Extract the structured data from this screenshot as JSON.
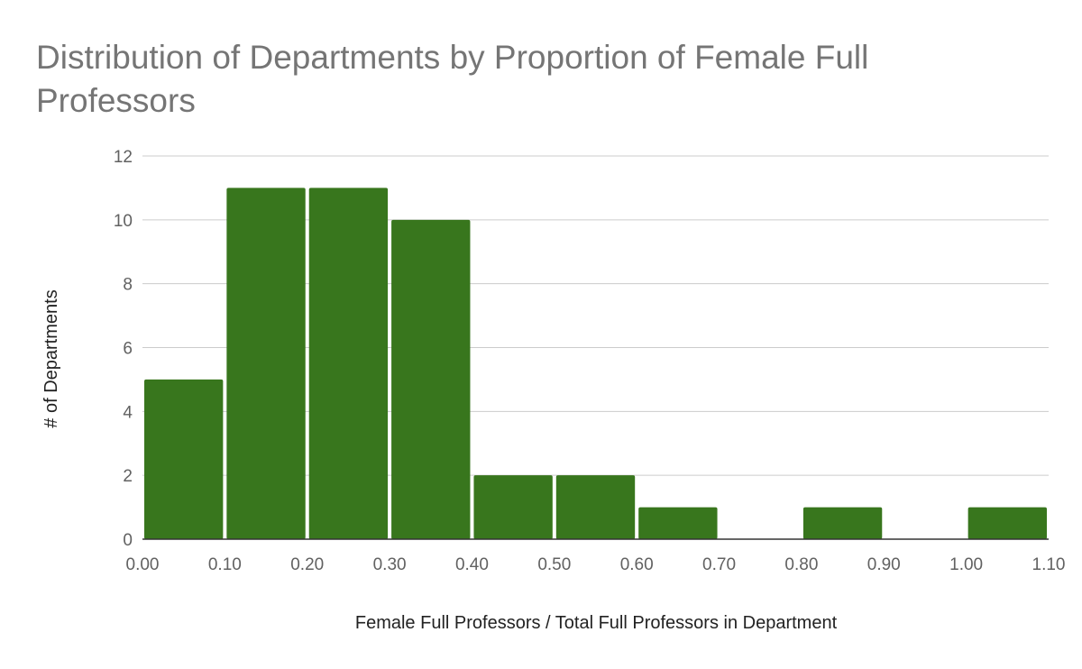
{
  "chart_data": {
    "type": "bar",
    "title": "Distribution of Departments by Proportion of Female Full Professors",
    "xlabel": "Female Full Professors / Total Full Professors in Department",
    "ylabel": "# of Departments",
    "bin_edges": [
      0.0,
      0.1,
      0.2,
      0.3,
      0.4,
      0.5,
      0.6,
      0.7,
      0.8,
      0.9,
      1.0,
      1.1
    ],
    "values": [
      5,
      11,
      11,
      10,
      2,
      2,
      1,
      0,
      1,
      0,
      1
    ],
    "x_tick_labels": [
      "0.00",
      "0.10",
      "0.20",
      "0.30",
      "0.40",
      "0.50",
      "0.60",
      "0.70",
      "0.80",
      "0.90",
      "1.00",
      "1.10"
    ],
    "y_ticks": [
      0,
      2,
      4,
      6,
      8,
      10,
      12
    ],
    "xlim": [
      0.0,
      1.1
    ],
    "ylim": [
      0,
      12
    ],
    "grid": true,
    "bar_color": "#38761d",
    "grid_color": "#cccccc"
  }
}
